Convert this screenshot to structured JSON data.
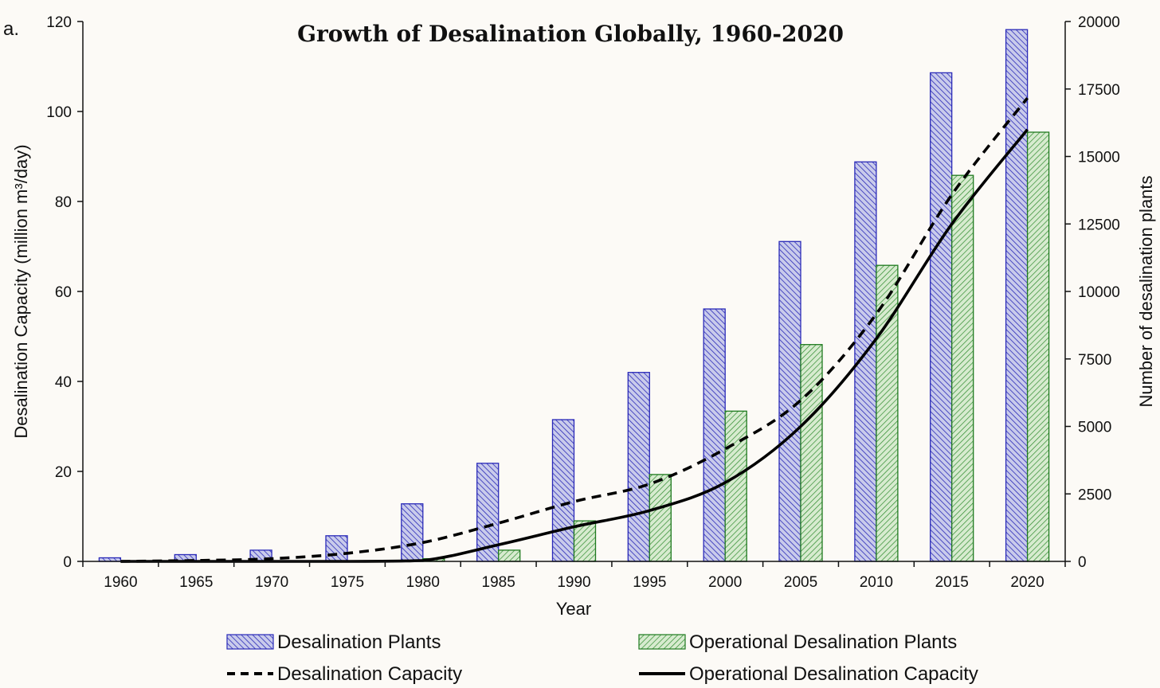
{
  "chart_data": {
    "type": "bar",
    "panel_label": "a.",
    "title": "Growth of Desalination Globally, 1960-2020",
    "xlabel": "Year",
    "ylabel_left": "Desalination Capacity (million m³/day)",
    "ylabel_right": "Number of desalination plants",
    "categories": [
      "1960",
      "1965",
      "1970",
      "1975",
      "1980",
      "1985",
      "1990",
      "1995",
      "2000",
      "2005",
      "2010",
      "2015",
      "2020"
    ],
    "ylim_left": [
      0,
      120
    ],
    "ylim_right": [
      0,
      20000
    ],
    "yticks_left": [
      "0",
      "20",
      "40",
      "60",
      "80",
      "100",
      "120"
    ],
    "yticks_right": [
      "0",
      "2500",
      "5000",
      "7500",
      "10000",
      "12500",
      "15000",
      "17500",
      "20000"
    ],
    "grid": false,
    "legend_position": "bottom",
    "bar_series": [
      {
        "name": "Desalination Plants",
        "axis": "right",
        "color": "#2a2ab8",
        "fill": "#c9cbeb",
        "values": [
          133,
          250,
          417,
          950,
          2133,
          3633,
          5250,
          7000,
          9350,
          11850,
          14800,
          18100,
          19700
        ]
      },
      {
        "name": "Operational Desalination Plants",
        "axis": "right",
        "color": "#1f7a1f",
        "fill": "#d7ebcf",
        "values": [
          0,
          0,
          0,
          0,
          100,
          417,
          1500,
          3217,
          5567,
          8033,
          10967,
          14300,
          15900
        ]
      }
    ],
    "line_series": [
      {
        "name": "Desalination Capacity",
        "axis": "left",
        "style": "dashed",
        "color": "#000000",
        "values": [
          0,
          0.2,
          0.6,
          1.8,
          4.2,
          8.5,
          13.3,
          17.2,
          25.0,
          35.8,
          55.0,
          81.5,
          103.0
        ]
      },
      {
        "name": "Operational Desalination Capacity",
        "axis": "left",
        "style": "solid",
        "color": "#000000",
        "values": [
          0,
          0,
          0,
          0,
          0.2,
          3.7,
          7.7,
          11.3,
          17.5,
          30.0,
          49.5,
          75.0,
          96.0
        ]
      }
    ]
  }
}
